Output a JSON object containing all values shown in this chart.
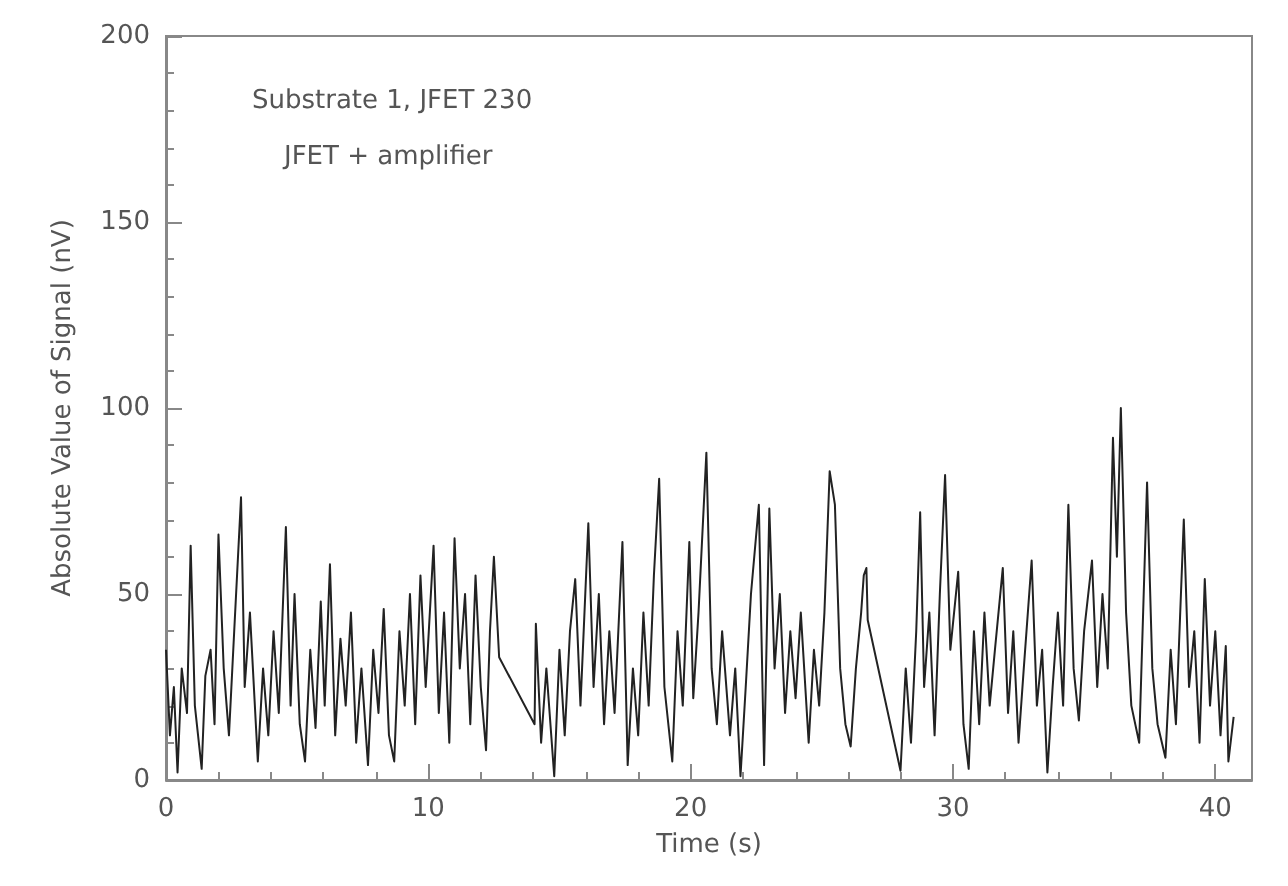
{
  "chart_data": {
    "type": "line",
    "xlabel": "Time (s)",
    "ylabel": "Absolute Value of Signal (nV)",
    "annotations": [
      "Substrate 1, JFET 230",
      "JFET + amplifier"
    ],
    "xlim": [
      0,
      41.4
    ],
    "xticks": [
      0,
      10,
      20,
      30,
      40
    ],
    "ylim": [
      0,
      200
    ],
    "yticks": [
      0,
      50,
      100,
      150,
      200
    ],
    "grid": false,
    "marker": "none",
    "line_style": "solid",
    "series": [
      {
        "color": "#222222",
        "x": [
          0,
          0.15,
          0.3,
          0.44,
          0.6,
          0.8,
          0.94,
          1.1,
          1.36,
          1.5,
          1.7,
          1.85,
          2.0,
          2.2,
          2.4,
          2.6,
          2.86,
          3.0,
          3.2,
          3.5,
          3.7,
          3.9,
          4.1,
          4.3,
          4.57,
          4.75,
          4.9,
          5.1,
          5.3,
          5.5,
          5.7,
          5.9,
          6.05,
          6.25,
          6.45,
          6.65,
          6.85,
          7.05,
          7.25,
          7.45,
          7.7,
          7.9,
          8.1,
          8.3,
          8.5,
          8.7,
          8.9,
          9.1,
          9.3,
          9.5,
          9.7,
          9.9,
          10.2,
          10.4,
          10.6,
          10.8,
          11.0,
          11.2,
          11.4,
          11.6,
          11.8,
          12.0,
          12.2,
          12.35,
          12.5,
          12.7,
          14.05,
          14.1,
          14.3,
          14.5,
          14.8,
          15.0,
          15.2,
          15.4,
          15.6,
          15.8,
          16.1,
          16.3,
          16.5,
          16.7,
          16.9,
          17.1,
          17.4,
          17.6,
          17.8,
          18.0,
          18.2,
          18.4,
          18.6,
          18.8,
          19.0,
          19.3,
          19.5,
          19.7,
          19.95,
          20.1,
          20.3,
          20.6,
          20.8,
          21.0,
          21.2,
          21.5,
          21.7,
          21.9,
          22.1,
          22.3,
          22.6,
          22.8,
          23.0,
          23.2,
          23.4,
          23.6,
          23.8,
          24.0,
          24.2,
          24.5,
          24.7,
          24.9,
          25.1,
          25.3,
          25.5,
          25.7,
          25.9,
          26.1,
          26.3,
          26.5,
          26.6,
          26.7,
          26.75,
          28.0,
          28.2,
          28.4,
          28.6,
          28.75,
          28.9,
          29.1,
          29.3,
          29.5,
          29.7,
          29.9,
          30.2,
          30.4,
          30.6,
          30.8,
          31.0,
          31.2,
          31.4,
          31.6,
          31.9,
          32.1,
          32.3,
          32.5,
          32.7,
          33.0,
          33.2,
          33.4,
          33.6,
          33.8,
          34.0,
          34.2,
          34.4,
          34.6,
          34.8,
          35.0,
          35.3,
          35.5,
          35.7,
          35.9,
          36.1,
          36.25,
          36.4,
          36.6,
          36.8,
          37.1,
          37.4,
          37.6,
          37.8,
          38.1,
          38.3,
          38.5,
          38.8,
          39.0,
          39.2,
          39.4,
          39.6,
          39.8,
          40.0,
          40.2,
          40.4,
          40.5,
          40.7
        ],
        "values": [
          35,
          12,
          25,
          2,
          30,
          18,
          63,
          20,
          3,
          28,
          35,
          15,
          66,
          30,
          12,
          40,
          76,
          25,
          45,
          5,
          30,
          12,
          40,
          18,
          68,
          20,
          50,
          15,
          5,
          35,
          14,
          48,
          20,
          58,
          12,
          38,
          20,
          45,
          10,
          30,
          4,
          35,
          18,
          46,
          12,
          5,
          40,
          20,
          50,
          15,
          55,
          25,
          63,
          18,
          45,
          10,
          65,
          30,
          50,
          15,
          55,
          25,
          8,
          40,
          60,
          33,
          15,
          42,
          10,
          30,
          1,
          35,
          12,
          40,
          54,
          20,
          69,
          25,
          50,
          15,
          40,
          18,
          64,
          4,
          30,
          12,
          45,
          20,
          55,
          81,
          25,
          5,
          40,
          20,
          64,
          22,
          45,
          88,
          30,
          15,
          40,
          12,
          30,
          1,
          25,
          50,
          74,
          4,
          73,
          30,
          50,
          18,
          40,
          22,
          45,
          10,
          35,
          20,
          45,
          83,
          74,
          30,
          15,
          9,
          30,
          45,
          55,
          57,
          43,
          2.5,
          30,
          10,
          40,
          72,
          25,
          45,
          12,
          50,
          82,
          35,
          56,
          15,
          3,
          40,
          15,
          45,
          20,
          35,
          57,
          18,
          40,
          10,
          30,
          59,
          20,
          35,
          2,
          25,
          45,
          20,
          74,
          30,
          16,
          40,
          59,
          25,
          50,
          30,
          92,
          60,
          100,
          45,
          20,
          10,
          80,
          30,
          15,
          6,
          35,
          15,
          70,
          25,
          40,
          10,
          54,
          20,
          40,
          12,
          36,
          5,
          17
        ]
      }
    ]
  }
}
